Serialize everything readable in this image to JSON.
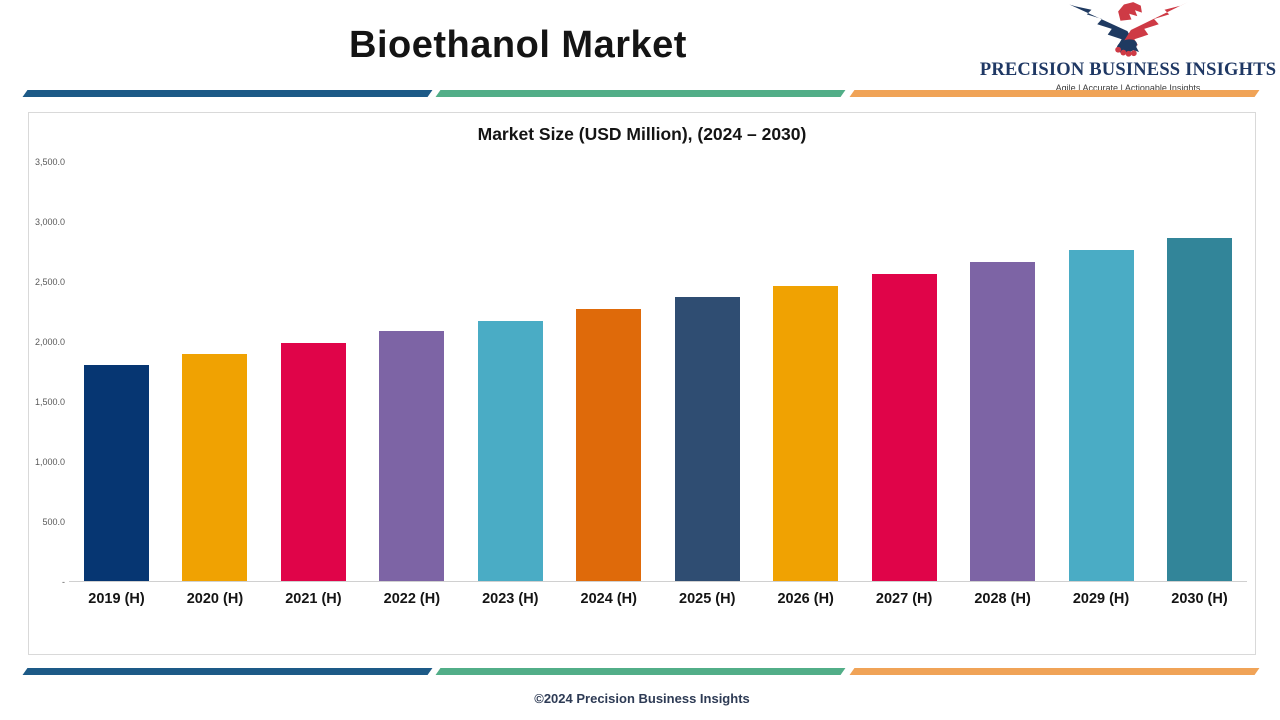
{
  "header": {
    "title": "Bioethanol Market",
    "logo": {
      "name": "PRECISION BUSINESS INSIGHTS",
      "tagline": "Agile | Accurate | Actionable Insights",
      "colors": {
        "navy": "#1F3A61",
        "red": "#CE3A45",
        "text_navy": "#1F3864"
      }
    }
  },
  "divider_colors": {
    "blue": "#1D5A87",
    "green": "#52AE88",
    "orange": "#F0A357"
  },
  "chart_data": {
    "type": "bar",
    "title": "Market Size (USD Million), (2024 – 2030)",
    "categories": [
      "2019 (H)",
      "2020 (H)",
      "2021 (H)",
      "2022 (H)",
      "2023 (H)",
      "2024 (H)",
      "2025 (H)",
      "2026 (H)",
      "2027 (H)",
      "2028 (H)",
      "2029 (H)",
      "2030 (H)"
    ],
    "values": [
      1800,
      1890,
      1980,
      2080,
      2170,
      2270,
      2370,
      2460,
      2560,
      2660,
      2760,
      2860
    ],
    "bar_colors": [
      "#063672",
      "#F0A202",
      "#E00449",
      "#7D64A5",
      "#4AACC5",
      "#DF6A0A",
      "#2F4D72",
      "#F0A202",
      "#E00449",
      "#7D64A5",
      "#4AACC5",
      "#328599"
    ],
    "xlabel": "",
    "ylabel": "",
    "ylim": [
      0,
      3500
    ],
    "yticks": [
      {
        "value": 3500,
        "label": "3,500.0"
      },
      {
        "value": 3000,
        "label": "3,000.0"
      },
      {
        "value": 2500,
        "label": "2,500.0"
      },
      {
        "value": 2000,
        "label": "2,000.0"
      },
      {
        "value": 1500,
        "label": "1,500.0"
      },
      {
        "value": 1000,
        "label": "1,000.0"
      },
      {
        "value": 500,
        "label": "500.0"
      },
      {
        "value": 0,
        "label": "-"
      }
    ],
    "grid": false,
    "legend_position": "none"
  },
  "footer": {
    "copyright": "©2024 Precision Business Insights"
  }
}
